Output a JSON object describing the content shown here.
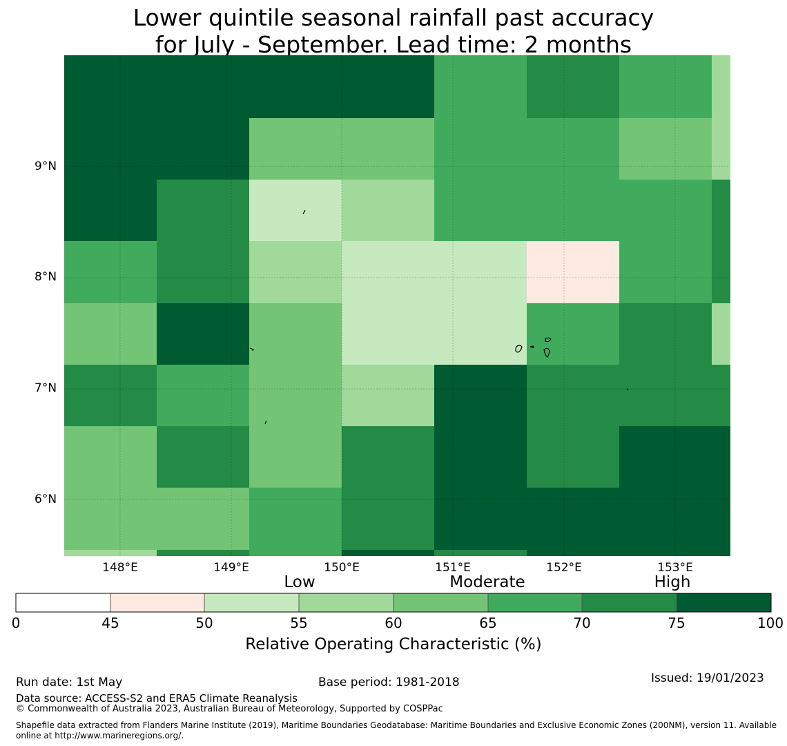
{
  "title_line1": "Lower quintile seasonal rainfall past accuracy",
  "title_line2": "for July - September. Lead time: 2 months",
  "map": {
    "lat_labels": [
      "9°N",
      "8°N",
      "7°N",
      "6°N"
    ],
    "lon_labels": [
      "148°E",
      "149°E",
      "150°E",
      "151°E",
      "152°E",
      "153°E"
    ],
    "colors": {
      "lt45": "#ffffff",
      "45_50": "#fdebe2",
      "50_55": "#c7e9c0",
      "55_60": "#a1d99b",
      "60_65": "#74c476",
      "65_70": "#41ab5d",
      "70_75": "#238b45",
      "75_100": "#005a32"
    },
    "grid_bins": [
      [
        "75_100",
        "75_100",
        "75_100",
        "75_100",
        "65_70",
        "70_75",
        "65_70",
        "55_60"
      ],
      [
        "75_100",
        "75_100",
        "60_65",
        "60_65",
        "65_70",
        "65_70",
        "60_65",
        "55_60"
      ],
      [
        "75_100",
        "70_75",
        "50_55",
        "55_60",
        "65_70",
        "65_70",
        "65_70",
        "70_75"
      ],
      [
        "65_70",
        "70_75",
        "55_60",
        "50_55",
        "50_55",
        "45_50",
        "65_70",
        "70_75"
      ],
      [
        "60_65",
        "75_100",
        "60_65",
        "50_55",
        "50_55",
        "65_70",
        "70_75",
        "55_60"
      ],
      [
        "70_75",
        "65_70",
        "60_65",
        "55_60",
        "75_100",
        "70_75",
        "70_75",
        "70_75"
      ],
      [
        "60_65",
        "70_75",
        "60_65",
        "70_75",
        "75_100",
        "70_75",
        "75_100",
        "75_100"
      ],
      [
        "60_65",
        "60_65",
        "65_70",
        "70_75",
        "75_100",
        "75_100",
        "75_100",
        "75_100"
      ],
      [
        "55_60",
        "70_75",
        "65_70",
        "75_100",
        "70_75",
        "75_100",
        "75_100",
        "75_100"
      ]
    ]
  },
  "colorbar": {
    "category_labels": [
      "Low",
      "Moderate",
      "High"
    ],
    "ticks": [
      "0",
      "45",
      "50",
      "55",
      "60",
      "65",
      "70",
      "75",
      "100"
    ],
    "bins": [
      "lt45",
      "45_50",
      "50_55",
      "55_60",
      "60_65",
      "65_70",
      "70_75",
      "75_100"
    ],
    "xlabel": "Relative Operating Characteristic (%)"
  },
  "footer": {
    "run_date": "Run date: 1st May",
    "base_period": "Base period: 1981-2018",
    "issued": "Issued: 19/01/2023",
    "data_source": "Data source: ACCESS-S2 and ERA5 Climate Reanalysis",
    "copyright": "© Commonwealth of Australia 2023, Australian Bureau of Meteorology, Supported by COSPPac",
    "shapefile": "Shapefile data extracted from Flanders Marine Institute (2019), Maritime Boundaries Geodatabase: Maritime Boundaries and Exclusive Economic Zones (200NM), version 11. Available online at http://www.marineregions.org/."
  }
}
